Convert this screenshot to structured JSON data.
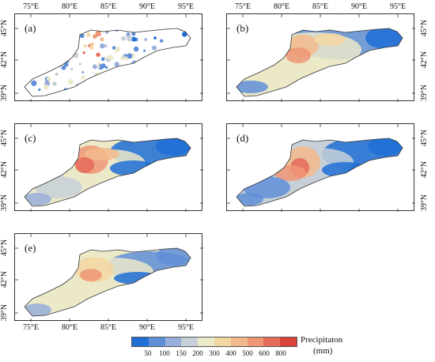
{
  "map": {
    "lon_labels": [
      "75°E",
      "80°E",
      "85°E",
      "90°E",
      "95°E"
    ],
    "lat_labels": [
      "45°N",
      "42°N",
      "39°N"
    ],
    "panels": [
      {
        "id": "a",
        "label": "(a)"
      },
      {
        "id": "b",
        "label": "(b)"
      },
      {
        "id": "c",
        "label": "(c)"
      },
      {
        "id": "d",
        "label": "(d)"
      },
      {
        "id": "e",
        "label": "(e)"
      }
    ]
  },
  "legend": {
    "title": "Precipitaton",
    "unit": "(mm)",
    "ticks": [
      "50",
      "100",
      "150",
      "200",
      "300",
      "400",
      "500",
      "600",
      "800"
    ],
    "colors": [
      "#1f6fd6",
      "#5f8fd8",
      "#98aedb",
      "#c7d0d8",
      "#ece9c9",
      "#f3d7a3",
      "#f2ba8c",
      "#ee9676",
      "#e56b5b",
      "#d9423d"
    ]
  }
}
